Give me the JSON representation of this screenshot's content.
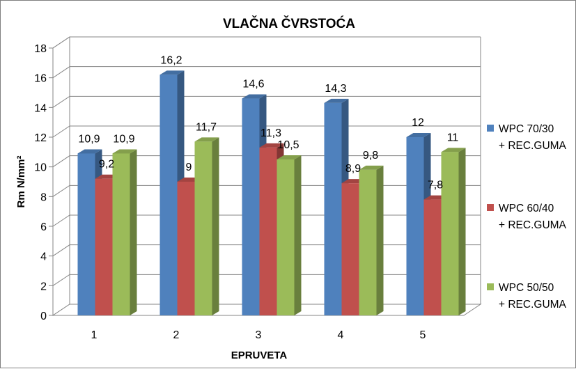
{
  "chart_data": {
    "type": "bar",
    "title": "VLAČNA ČVRSTOĆA",
    "xlabel": "EPRUVETA",
    "ylabel": "Rm N/mm²",
    "categories": [
      "1",
      "2",
      "3",
      "4",
      "5"
    ],
    "ylim": [
      0,
      18
    ],
    "yticks": [
      "0",
      "2",
      "4",
      "6",
      "8",
      "10",
      "12",
      "14",
      "16",
      "18"
    ],
    "grid": true,
    "legend_position": "right",
    "series": [
      {
        "name": "WPC 70/30 + REC.GUMA",
        "legend_lines": [
          "WPC 70/30",
          "+ REC.GUMA"
        ],
        "color": "#4f81bd",
        "values": [
          10.9,
          16.2,
          14.6,
          14.3,
          12
        ],
        "labels": [
          "10,9",
          "16,2",
          "14,6",
          "14,3",
          "12"
        ]
      },
      {
        "name": "WPC 60/40 + REC.GUMA",
        "legend_lines": [
          "WPC 60/40",
          "+ REC.GUMA"
        ],
        "color": "#c0504d",
        "values": [
          9.2,
          9,
          11.3,
          8.9,
          7.8
        ],
        "labels": [
          "9,2",
          "9",
          "11,3",
          "8,9",
          "7,8"
        ]
      },
      {
        "name": "WPC 50/50 + REC.GUMA",
        "legend_lines": [
          "WPC 50/50",
          "+ REC.GUMA"
        ],
        "color": "#9bbb59",
        "values": [
          10.9,
          11.7,
          10.5,
          9.8,
          11
        ],
        "labels": [
          "10,9",
          "11,7",
          "10,5",
          "9,8",
          "11"
        ]
      }
    ]
  }
}
